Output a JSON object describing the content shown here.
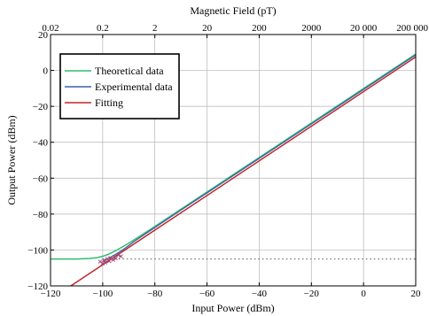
{
  "chart_data": {
    "type": "line",
    "xlabel": "Input Power (dBm)",
    "ylabel": "Output Power (dBm)",
    "x2label": "Magnetic Field (pT)",
    "xlim": [
      -120,
      20
    ],
    "ylim": [
      -120,
      20
    ],
    "x_ticks": [
      -120,
      -100,
      -80,
      -60,
      -40,
      -20,
      0,
      20
    ],
    "y_ticks": [
      -120,
      -100,
      -80,
      -60,
      -40,
      -20,
      0,
      20
    ],
    "x2_ticks": [
      {
        "label": "0.02",
        "at": -120
      },
      {
        "label": "0.2",
        "at": -100
      },
      {
        "label": "2",
        "at": -80
      },
      {
        "label": "20",
        "at": -60
      },
      {
        "label": "200",
        "at": -40
      },
      {
        "label": "2000",
        "at": -20
      },
      {
        "label": "20 000",
        "at": 0
      },
      {
        "label": "200 000",
        "at": 20
      }
    ],
    "grid": true,
    "legend_position": "top-left",
    "noise_floor": -105,
    "series": [
      {
        "name": "Theoretical data",
        "color": "#2ebd6b",
        "x": [
          -120,
          -115,
          -110,
          -105,
          -102,
          -100,
          -98,
          -95,
          -90,
          -85,
          -80,
          -70,
          -60,
          -50,
          -40,
          -30,
          -20,
          -10,
          0,
          10,
          20
        ],
        "y": [
          -105,
          -105,
          -105,
          -104.7,
          -104.2,
          -103.5,
          -102.5,
          -100.4,
          -96.2,
          -91.6,
          -86.9,
          -77.3,
          -67.7,
          -58.1,
          -48.5,
          -38.9,
          -29.3,
          -19.7,
          -10.1,
          -0.5,
          9.1
        ]
      },
      {
        "name": "Experimental data",
        "color": "#3a5fa8",
        "x": [
          -100,
          -98,
          -96,
          -94,
          -92,
          -90,
          -88,
          -80,
          -70,
          -60,
          -50,
          -40,
          -30,
          -20,
          -10,
          0,
          10,
          20
        ],
        "y": [
          -106.5,
          -104.8,
          -103.2,
          -101.5,
          -99.6,
          -97.5,
          -95.3,
          -87.5,
          -77.8,
          -68.2,
          -58.6,
          -49,
          -39.4,
          -29.8,
          -20.2,
          -10.6,
          -1,
          8.6
        ]
      },
      {
        "name": "Fitting",
        "color": "#c0272d",
        "x": [
          -120,
          20
        ],
        "y": [
          -127.5,
          7.5
        ]
      }
    ],
    "marker_points": {
      "color": "#a04070",
      "x": [
        -101,
        -100,
        -99.5,
        -99,
        -98.2,
        -97.5,
        -97,
        -96,
        -95.5,
        -95,
        -94,
        -93
      ],
      "y": [
        -106.5,
        -107.5,
        -105.8,
        -107,
        -105,
        -106.2,
        -104.5,
        -105.5,
        -103.8,
        -104.6,
        -102.8,
        -103.5
      ]
    }
  }
}
